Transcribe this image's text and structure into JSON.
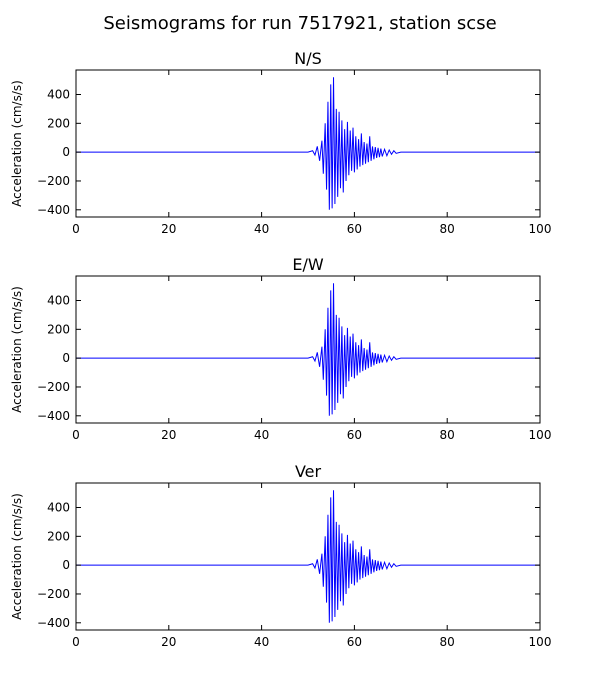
{
  "figure_title": "Seismograms for run 7517921, station scse",
  "chart_data": [
    {
      "type": "line",
      "title": "N/S",
      "xlabel": "",
      "ylabel": "Acceleration (cm/s/s)",
      "xlim": [
        0,
        100
      ],
      "ylim": [
        -450,
        570
      ],
      "xticks": [
        0,
        20,
        40,
        60,
        80,
        100
      ],
      "yticks": [
        -400,
        -200,
        0,
        200,
        400
      ],
      "grid": false,
      "series": [
        {
          "color": "#0000ff",
          "x": [
            0,
            50,
            51,
            51.5,
            52,
            52.5,
            53,
            53.3,
            53.7,
            54,
            54.3,
            54.6,
            54.9,
            55.2,
            55.5,
            55.8,
            56.1,
            56.4,
            56.7,
            57,
            57.3,
            57.6,
            57.9,
            58.2,
            58.5,
            58.8,
            59.1,
            59.4,
            59.7,
            60,
            60.3,
            60.6,
            60.9,
            61.2,
            61.5,
            61.8,
            62.1,
            62.4,
            62.7,
            63,
            63.3,
            63.6,
            63.9,
            64.2,
            64.5,
            64.8,
            65.1,
            65.4,
            65.7,
            66,
            66.5,
            67,
            67.5,
            68,
            68.5,
            69,
            70,
            100
          ],
          "y": [
            0,
            0,
            10,
            -20,
            40,
            -60,
            80,
            -150,
            200,
            -260,
            350,
            -400,
            470,
            -390,
            520,
            -360,
            300,
            -310,
            280,
            -250,
            220,
            -280,
            160,
            -200,
            210,
            -160,
            150,
            -130,
            170,
            -140,
            110,
            -120,
            90,
            -100,
            130,
            -90,
            70,
            -80,
            60,
            -70,
            110,
            -60,
            40,
            -50,
            35,
            -40,
            30,
            -35,
            25,
            -30,
            20,
            -25,
            15,
            -15,
            10,
            -8,
            0,
            0
          ]
        }
      ]
    },
    {
      "type": "line",
      "title": "E/W",
      "xlabel": "",
      "ylabel": "Acceleration (cm/s/s)",
      "xlim": [
        0,
        100
      ],
      "ylim": [
        -450,
        570
      ],
      "xticks": [
        0,
        20,
        40,
        60,
        80,
        100
      ],
      "yticks": [
        -400,
        -200,
        0,
        200,
        400
      ],
      "grid": false,
      "series": [
        {
          "color": "#0000ff",
          "x": [
            0,
            50,
            51,
            51.5,
            52,
            52.5,
            53,
            53.3,
            53.7,
            54,
            54.3,
            54.6,
            54.9,
            55.2,
            55.5,
            55.8,
            56.1,
            56.4,
            56.7,
            57,
            57.3,
            57.6,
            57.9,
            58.2,
            58.5,
            58.8,
            59.1,
            59.4,
            59.7,
            60,
            60.3,
            60.6,
            60.9,
            61.2,
            61.5,
            61.8,
            62.1,
            62.4,
            62.7,
            63,
            63.3,
            63.6,
            63.9,
            64.2,
            64.5,
            64.8,
            65.1,
            65.4,
            65.7,
            66,
            66.5,
            67,
            67.5,
            68,
            68.5,
            69,
            70,
            100
          ],
          "y": [
            0,
            0,
            10,
            -20,
            40,
            -60,
            80,
            -150,
            200,
            -260,
            350,
            -400,
            470,
            -390,
            520,
            -360,
            300,
            -310,
            280,
            -250,
            220,
            -280,
            160,
            -200,
            210,
            -160,
            150,
            -130,
            170,
            -140,
            110,
            -120,
            90,
            -100,
            130,
            -90,
            70,
            -80,
            60,
            -70,
            110,
            -60,
            40,
            -50,
            35,
            -40,
            30,
            -35,
            25,
            -30,
            20,
            -25,
            15,
            -15,
            10,
            -8,
            0,
            0
          ]
        }
      ]
    },
    {
      "type": "line",
      "title": "Ver",
      "xlabel": "",
      "ylabel": "Acceleration (cm/s/s)",
      "xlim": [
        0,
        100
      ],
      "ylim": [
        -450,
        570
      ],
      "xticks": [
        0,
        20,
        40,
        60,
        80,
        100
      ],
      "yticks": [
        -400,
        -200,
        0,
        200,
        400
      ],
      "grid": false,
      "series": [
        {
          "color": "#0000ff",
          "x": [
            0,
            50,
            51,
            51.5,
            52,
            52.5,
            53,
            53.3,
            53.7,
            54,
            54.3,
            54.6,
            54.9,
            55.2,
            55.5,
            55.8,
            56.1,
            56.4,
            56.7,
            57,
            57.3,
            57.6,
            57.9,
            58.2,
            58.5,
            58.8,
            59.1,
            59.4,
            59.7,
            60,
            60.3,
            60.6,
            60.9,
            61.2,
            61.5,
            61.8,
            62.1,
            62.4,
            62.7,
            63,
            63.3,
            63.6,
            63.9,
            64.2,
            64.5,
            64.8,
            65.1,
            65.4,
            65.7,
            66,
            66.5,
            67,
            67.5,
            68,
            68.5,
            69,
            70,
            100
          ],
          "y": [
            0,
            0,
            10,
            -20,
            40,
            -60,
            80,
            -150,
            200,
            -260,
            350,
            -400,
            470,
            -390,
            520,
            -360,
            300,
            -310,
            280,
            -250,
            220,
            -280,
            160,
            -200,
            210,
            -160,
            150,
            -130,
            170,
            -140,
            110,
            -120,
            90,
            -100,
            130,
            -90,
            70,
            -80,
            60,
            -70,
            110,
            -60,
            40,
            -50,
            35,
            -40,
            30,
            -35,
            25,
            -30,
            20,
            -25,
            15,
            -15,
            10,
            -8,
            0,
            0
          ]
        }
      ]
    }
  ]
}
